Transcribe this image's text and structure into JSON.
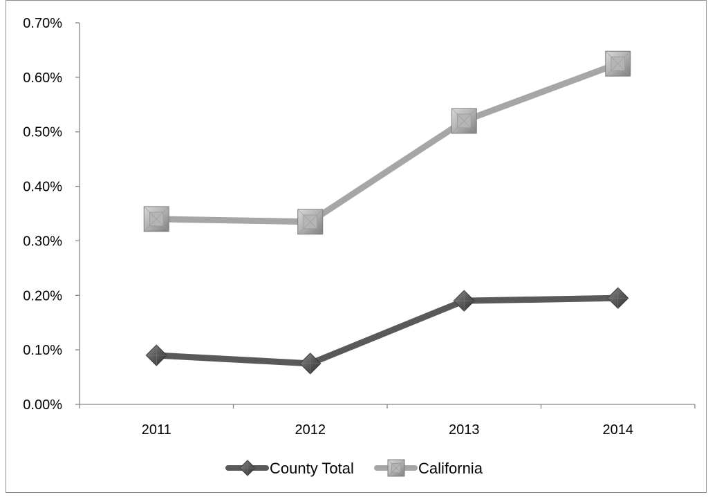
{
  "chart_data": {
    "type": "line",
    "title": "",
    "xlabel": "",
    "ylabel": "",
    "categories": [
      "2011",
      "2012",
      "2013",
      "2014"
    ],
    "ylim": [
      0,
      0.7
    ],
    "y_ticks": [
      0,
      0.1,
      0.2,
      0.3,
      0.4,
      0.5,
      0.6,
      0.7
    ],
    "y_tick_labels": [
      "0.00%",
      "0.10%",
      "0.20%",
      "0.30%",
      "0.40%",
      "0.50%",
      "0.60%",
      "0.70%"
    ],
    "grid": false,
    "legend_position": "bottom",
    "series": [
      {
        "name": "County Total",
        "values": [
          0.09,
          0.075,
          0.19,
          0.195
        ],
        "color": "#595959",
        "marker": "diamond"
      },
      {
        "name": "California",
        "values": [
          0.34,
          0.335,
          0.52,
          0.625
        ],
        "color": "#a6a6a6",
        "marker": "square"
      }
    ]
  }
}
